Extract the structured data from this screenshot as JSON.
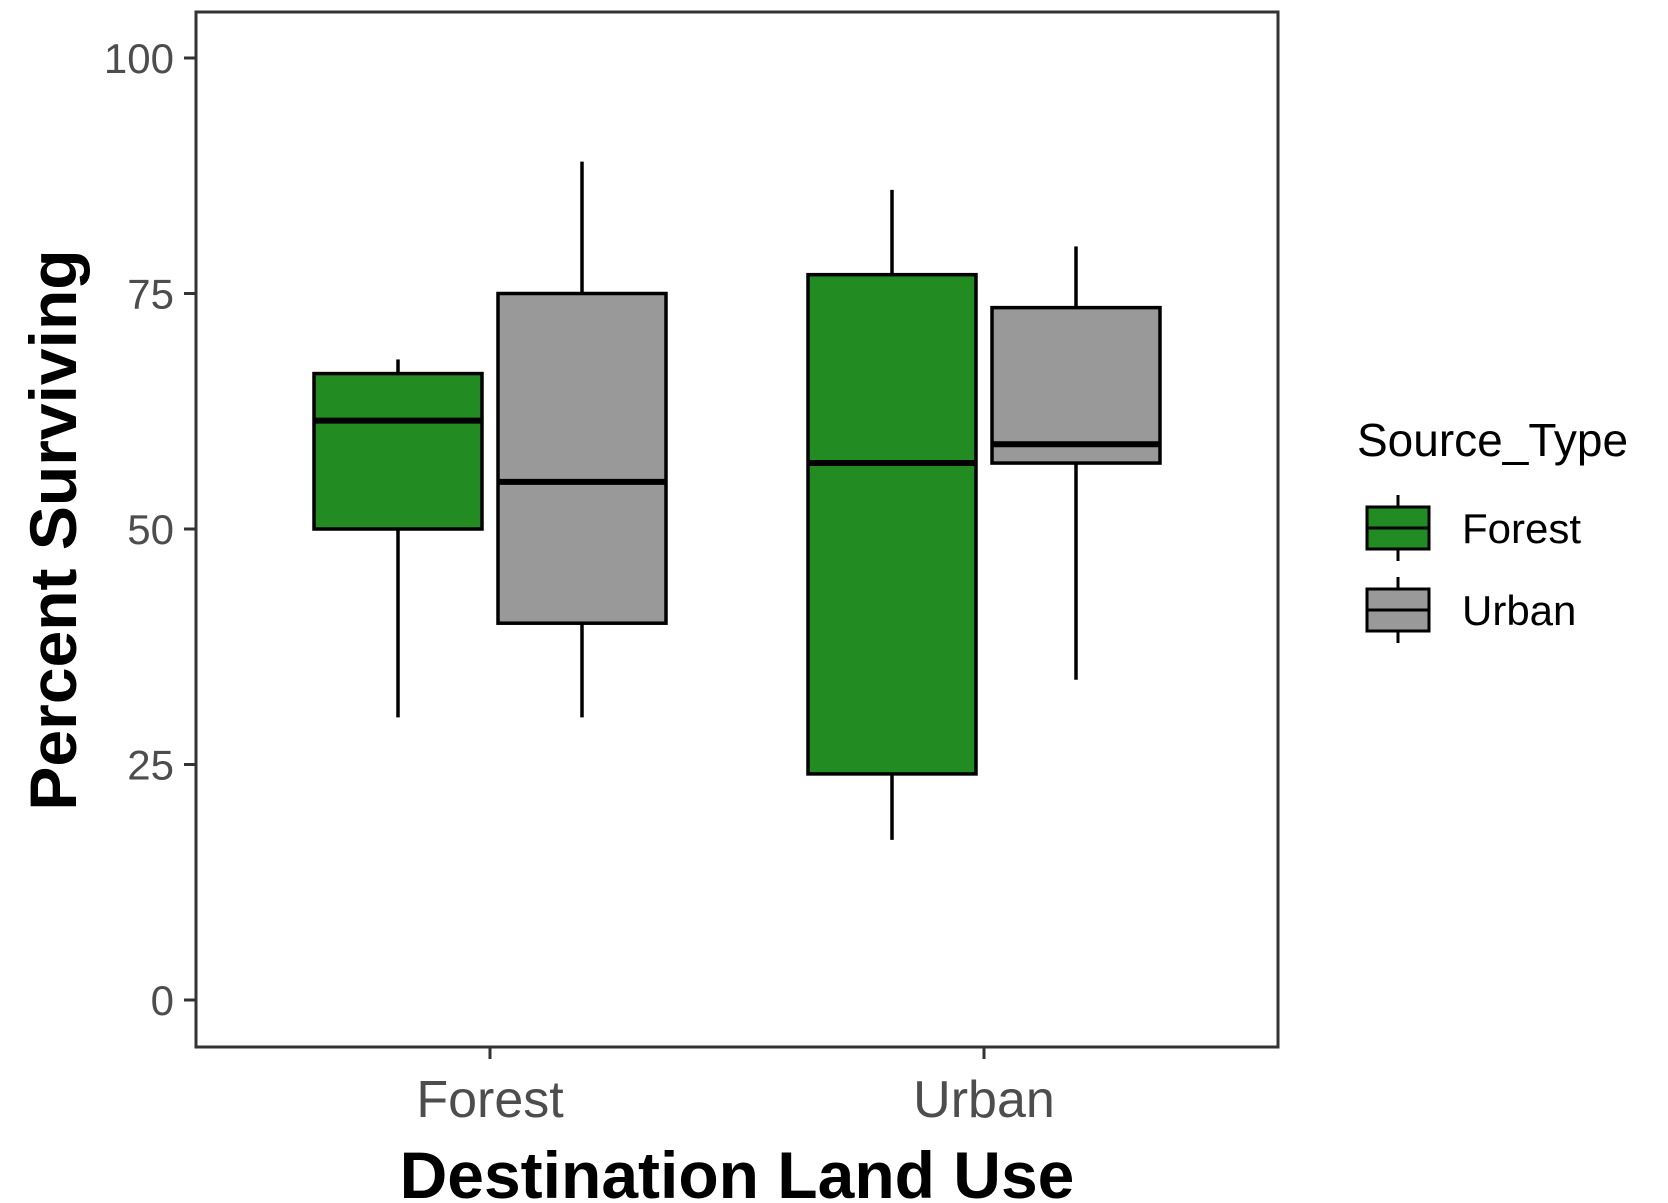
{
  "chart_data": {
    "type": "boxplot",
    "title": "",
    "xlabel": "Destination Land Use",
    "ylabel": "Percent Surviving",
    "ylim": [
      -5,
      105
    ],
    "yticks": [
      0,
      25,
      50,
      75,
      100
    ],
    "ytick_labels": [
      "0",
      "25",
      "50",
      "75",
      "100"
    ],
    "categories": [
      "Forest",
      "Urban"
    ],
    "grid": false,
    "legend": {
      "title": "Source_Type",
      "position": "right"
    },
    "series": [
      {
        "name": "Forest",
        "color": "#228b22",
        "boxes": [
          {
            "category": "Forest",
            "min": 30,
            "q1": 50,
            "median": 61.5,
            "q3": 66.5,
            "max": 68
          },
          {
            "category": "Urban",
            "min": 17,
            "q1": 24,
            "median": 57,
            "q3": 77,
            "max": 86
          }
        ]
      },
      {
        "name": "Urban",
        "color": "#999999",
        "boxes": [
          {
            "category": "Forest",
            "min": 30,
            "q1": 40,
            "median": 55,
            "q3": 75,
            "max": 89
          },
          {
            "category": "Urban",
            "min": 34,
            "q1": 57,
            "median": 59,
            "q3": 73.5,
            "max": 80
          }
        ]
      }
    ]
  }
}
